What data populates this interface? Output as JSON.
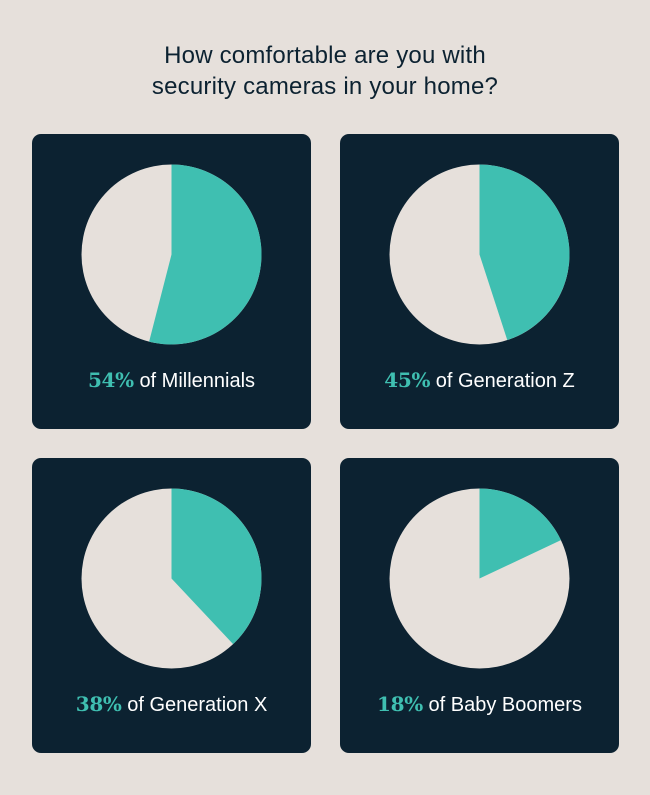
{
  "colors": {
    "background": "#e6e0db",
    "card": "#0c2231",
    "accent": "#3fbfb1",
    "remainder": "#e6e0db",
    "text": "#ffffff",
    "title": "#0c2231"
  },
  "title": {
    "line1": "How comfortable are you with",
    "line2": "security cameras in your home?"
  },
  "chart_data": [
    {
      "type": "pie",
      "value": 54,
      "pct_label": "54%",
      "group_label": "of Millennials"
    },
    {
      "type": "pie",
      "value": 45,
      "pct_label": "45%",
      "group_label": "of Generation Z"
    },
    {
      "type": "pie",
      "value": 38,
      "pct_label": "38%",
      "group_label": "of Generation X"
    },
    {
      "type": "pie",
      "value": 18,
      "pct_label": "18%",
      "group_label": "of Baby Boomers"
    }
  ]
}
